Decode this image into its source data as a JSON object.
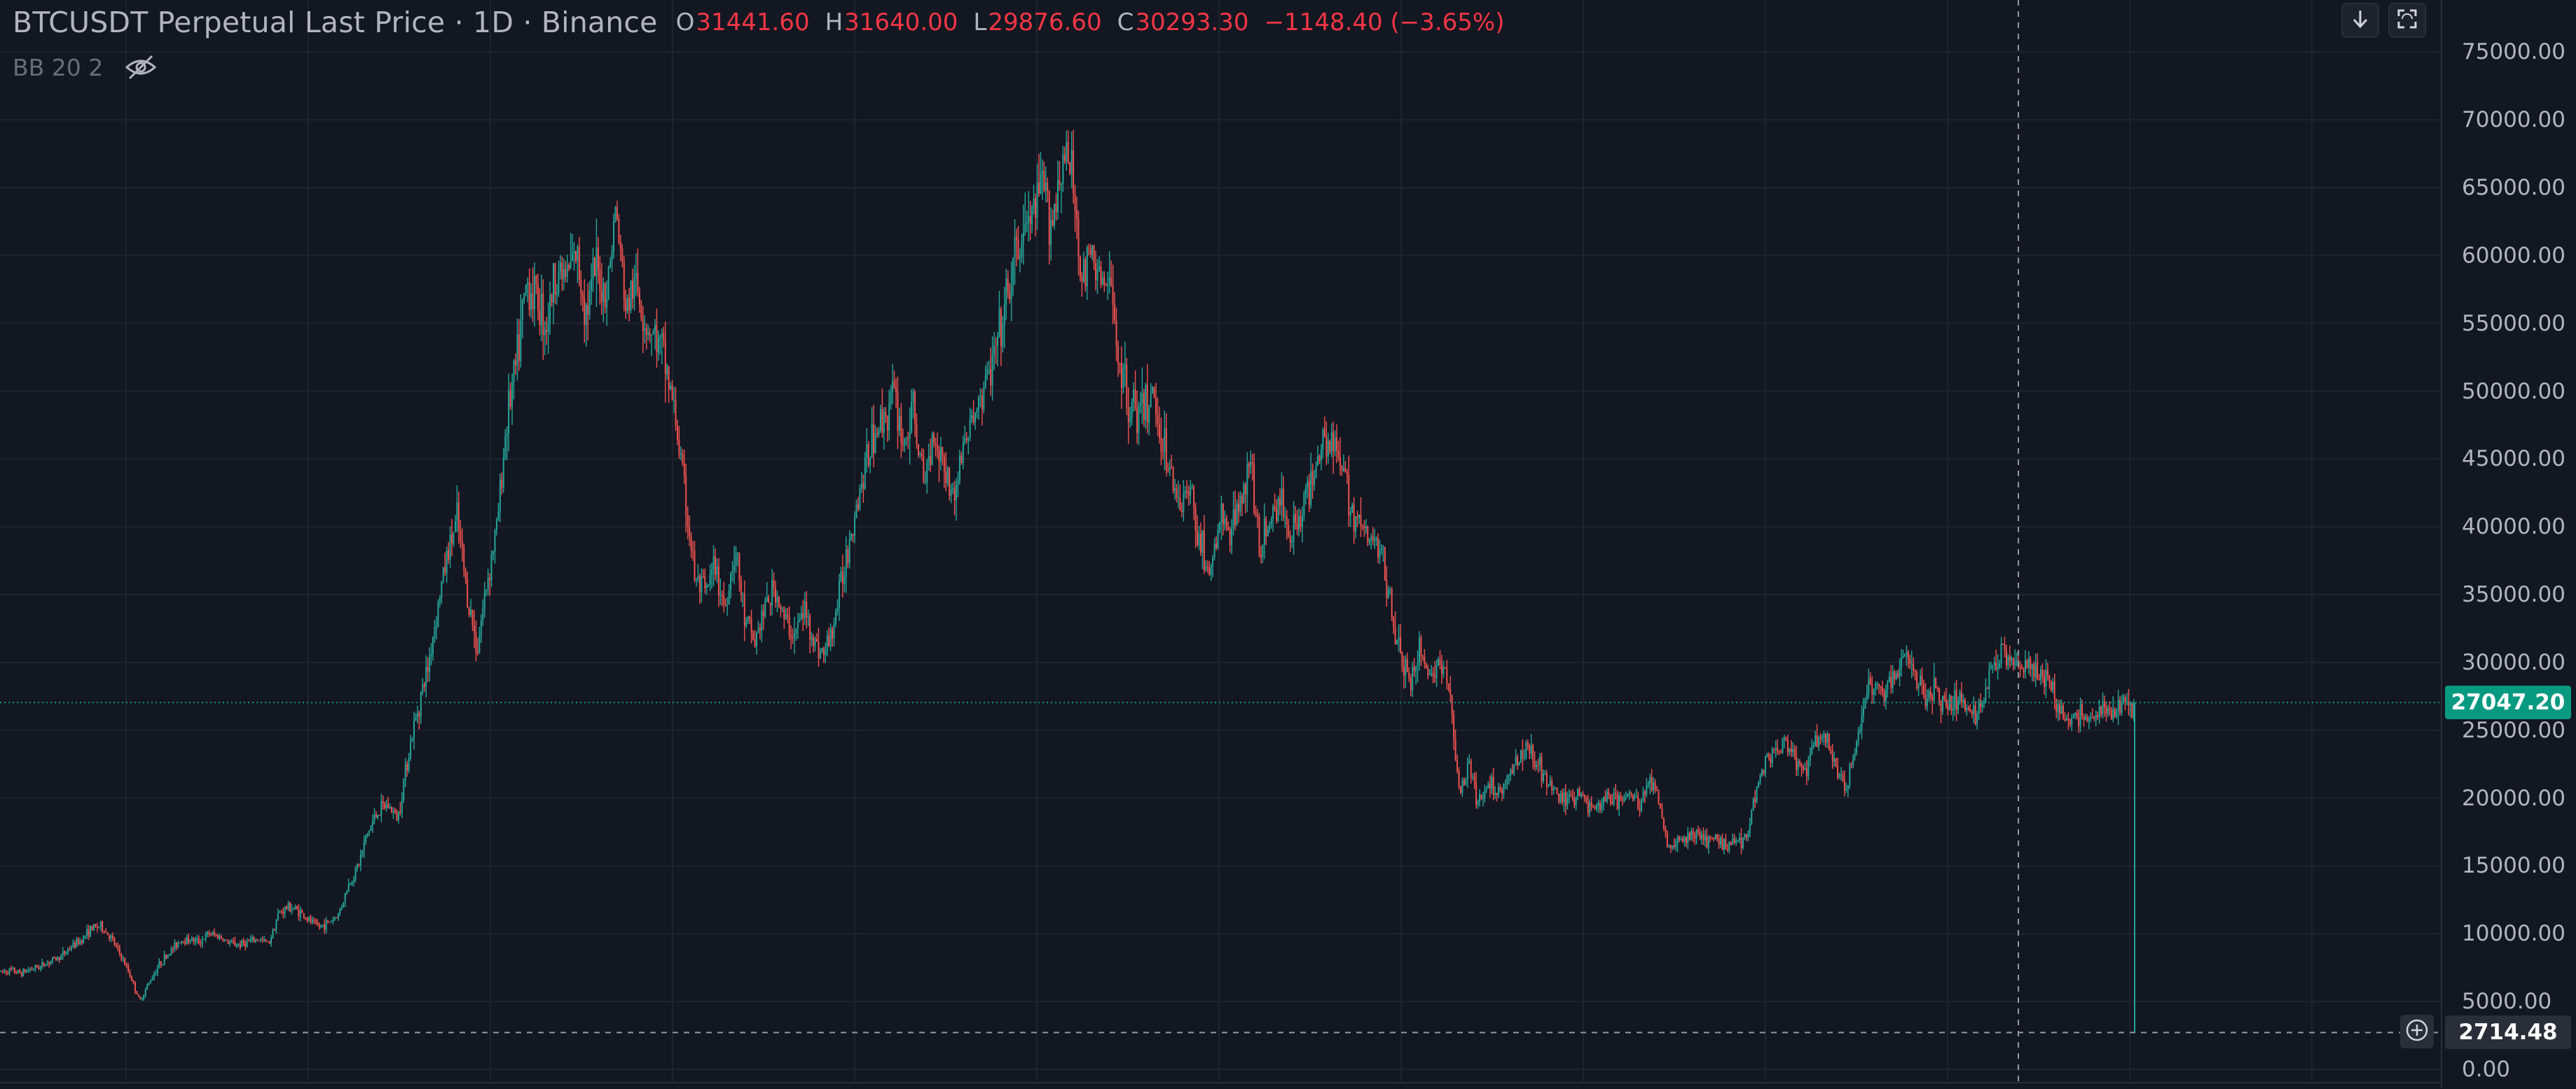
{
  "legend": {
    "title": "BTCUSDT Perpetual Last Price · 1D · Binance",
    "ohlc": [
      {
        "key": "O",
        "value": "31441.60"
      },
      {
        "key": "H",
        "value": "31640.00"
      },
      {
        "key": "L",
        "value": "29876.60"
      },
      {
        "key": "C",
        "value": "30293.30"
      }
    ],
    "change": "−1148.40 (−3.65%)"
  },
  "study": {
    "name": "BB 20 2",
    "visibility_icon": "eye-crossed-icon"
  },
  "toolbar": {
    "scroll_to_latest_icon": "arrow-down-icon",
    "fullscreen_icon": "fullscreen-icon"
  },
  "price_axis": {
    "ticks": [
      "75000.00",
      "70000.00",
      "65000.00",
      "60000.00",
      "55000.00",
      "50000.00",
      "45000.00",
      "40000.00",
      "35000.00",
      "30000.00",
      "25000.00",
      "20000.00",
      "15000.00",
      "10000.00",
      "5000.00",
      "0.00"
    ]
  },
  "last_price": {
    "label": "27047.20",
    "value": 27047.2
  },
  "crosshair": {
    "label": "2714.48",
    "value": 2714.48,
    "add_icon": "plus-circle-icon"
  },
  "colors": {
    "background": "#131722",
    "up": "#26a69a",
    "down": "#ef5350",
    "last_price_line": "#089981",
    "legend_change": "#f23645"
  },
  "chart_data": {
    "type": "candlestick",
    "symbol": "BTCUSDT Perpetual",
    "interval": "1D",
    "exchange": "Binance",
    "ylim": [
      0,
      76500
    ],
    "grid": true,
    "approx_price_path": [
      7200,
      7300,
      7100,
      7400,
      7600,
      8000,
      8300,
      9000,
      9500,
      10300,
      10600,
      9800,
      8500,
      7000,
      5000,
      6500,
      7800,
      8600,
      9500,
      9600,
      9400,
      10000,
      9800,
      9300,
      9200,
      9400,
      9600,
      9300,
      11500,
      12000,
      11700,
      11000,
      10500,
      10800,
      11400,
      13500,
      15000,
      17500,
      19000,
      19500,
      18500,
      23000,
      26500,
      29500,
      34000,
      38000,
      40500,
      35000,
      31000,
      36000,
      40000,
      48000,
      52000,
      58000,
      57000,
      55000,
      59000,
      58500,
      60000,
      56000,
      59000,
      57000,
      63500,
      56000,
      58000,
      55000,
      54000,
      52000,
      48000,
      42000,
      36000,
      35000,
      37000,
      34000,
      38500,
      33000,
      31500,
      34000,
      35500,
      33000,
      32000,
      34000,
      31500,
      30500,
      33000,
      37000,
      41000,
      44000,
      47000,
      48000,
      50000,
      46000,
      48500,
      43000,
      47000,
      45000,
      42000,
      46000,
      48000,
      50000,
      52000,
      55000,
      59000,
      61500,
      63000,
      65000,
      62500,
      67500,
      66000,
      58000,
      60000,
      58000,
      57000,
      51000,
      49000,
      48000,
      50000,
      47000,
      43500,
      42000,
      42500,
      38500,
      36500,
      41000,
      39000,
      43000,
      44000,
      38000,
      41000,
      42000,
      39500,
      41000,
      43000,
      46500,
      47000,
      44500,
      42000,
      40000,
      39000,
      38500,
      35000,
      30500,
      28500,
      31000,
      29000,
      30000,
      28000,
      20500,
      22000,
      19500,
      21000,
      20500,
      21500,
      23000,
      24000,
      22500,
      21000,
      20000,
      19800,
      20500,
      19500,
      19300,
      20200,
      19800,
      20300,
      19600,
      21000,
      20500,
      16500,
      16800,
      17000,
      17500,
      16700,
      16900,
      16600,
      16800,
      17200,
      21000,
      23000,
      23500,
      24000,
      22500,
      22000,
      24500,
      24000,
      22200,
      20500,
      24000,
      28000,
      28500,
      27500,
      29500,
      30300,
      29000,
      27500,
      28000,
      27000,
      27500,
      26800,
      26000,
      27500,
      30500,
      31000,
      30000,
      29800,
      29200,
      29000,
      27500,
      26000,
      25800,
      26000,
      25900,
      26500,
      26000,
      27000,
      27047.2
    ]
  }
}
